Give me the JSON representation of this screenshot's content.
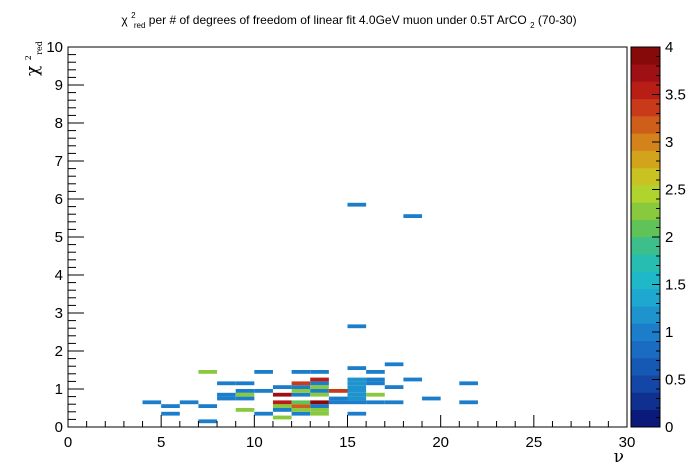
{
  "chart_data": {
    "type": "heatmap",
    "title": {
      "chi_symbol": "χ",
      "chi_sup": "2",
      "chi_sub": "red",
      "text_a": " per # of degrees of freedom of linear fit 4.0GeV muon under 0.5T ArCO",
      "co2_sub": "2",
      "text_b": " (70-30)"
    },
    "xlabel": "ν",
    "ylabel": {
      "symbol": "χ",
      "sup": "2",
      "sub": "red"
    },
    "xlim": [
      0,
      30
    ],
    "ylim": [
      0,
      10
    ],
    "x_ticks": [
      0,
      5,
      10,
      15,
      20,
      25,
      30
    ],
    "y_ticks": [
      0,
      1,
      2,
      3,
      4,
      5,
      6,
      7,
      8,
      9,
      10
    ],
    "z_ticks": [
      "0",
      "0.5",
      "1",
      "1.5",
      "2",
      "2.5",
      "3",
      "3.5",
      "4"
    ],
    "zlim": [
      0,
      4
    ],
    "grid": false,
    "colorbar": "right",
    "bin_width_x": 1,
    "bin_height_y": 0.1,
    "cells": [
      [
        7,
        0.1,
        1
      ],
      [
        5,
        0.3,
        1
      ],
      [
        10,
        0.3,
        1
      ],
      [
        11,
        0.2,
        2.2
      ],
      [
        12,
        0.3,
        1
      ],
      [
        13,
        0.3,
        2.2
      ],
      [
        15,
        0.3,
        1
      ],
      [
        9,
        0.4,
        2.2
      ],
      [
        11,
        0.4,
        1
      ],
      [
        12,
        0.4,
        2.2
      ],
      [
        13,
        0.4,
        2.2
      ],
      [
        4,
        0.6,
        1
      ],
      [
        5,
        0.5,
        1
      ],
      [
        6,
        0.6,
        1
      ],
      [
        7,
        0.5,
        1
      ],
      [
        11,
        0.5,
        2.2
      ],
      [
        12,
        0.5,
        3.2
      ],
      [
        13,
        0.5,
        1
      ],
      [
        11,
        0.6,
        3.5
      ],
      [
        12,
        0.6,
        2
      ],
      [
        13,
        0.6,
        4
      ],
      [
        14,
        0.6,
        1
      ],
      [
        15,
        0.6,
        1
      ],
      [
        16,
        0.6,
        1
      ],
      [
        17,
        0.6,
        1
      ],
      [
        21,
        0.6,
        1
      ],
      [
        8,
        0.7,
        1
      ],
      [
        9,
        0.7,
        1
      ],
      [
        14,
        0.7,
        1
      ],
      [
        15,
        0.7,
        1.2
      ],
      [
        16,
        0.8,
        2.2
      ],
      [
        19,
        0.7,
        1
      ],
      [
        8,
        0.8,
        1
      ],
      [
        9,
        0.8,
        2.2
      ],
      [
        11,
        0.8,
        3.8
      ],
      [
        12,
        0.8,
        1
      ],
      [
        13,
        0.8,
        2.2
      ],
      [
        15,
        0.8,
        1.2
      ],
      [
        9,
        0.9,
        1
      ],
      [
        10,
        0.9,
        1
      ],
      [
        12,
        0.9,
        2.2
      ],
      [
        13,
        0.9,
        1
      ],
      [
        14,
        0.9,
        3.4
      ],
      [
        15,
        0.9,
        1.2
      ],
      [
        11,
        1.0,
        1
      ],
      [
        12,
        1.0,
        1
      ],
      [
        13,
        1.0,
        2.2
      ],
      [
        15,
        1.0,
        1.2
      ],
      [
        17,
        1.0,
        1
      ],
      [
        12,
        1.1,
        3.4
      ],
      [
        13,
        1.1,
        1
      ],
      [
        15,
        1.1,
        1.2
      ],
      [
        16,
        1.1,
        1
      ],
      [
        21,
        1.1,
        1
      ],
      [
        8,
        1.1,
        1
      ],
      [
        9,
        1.1,
        1
      ],
      [
        13,
        1.2,
        3.6
      ],
      [
        15,
        1.2,
        1.2
      ],
      [
        16,
        1.2,
        1
      ],
      [
        18,
        1.2,
        1
      ],
      [
        7,
        1.4,
        2.2
      ],
      [
        10,
        1.4,
        1
      ],
      [
        12,
        1.4,
        1
      ],
      [
        13,
        1.4,
        1
      ],
      [
        16,
        1.4,
        1
      ],
      [
        15,
        1.5,
        1
      ],
      [
        17,
        1.6,
        1
      ],
      [
        15,
        2.6,
        1
      ],
      [
        18,
        5.5,
        1
      ],
      [
        15,
        5.8,
        1
      ]
    ]
  }
}
